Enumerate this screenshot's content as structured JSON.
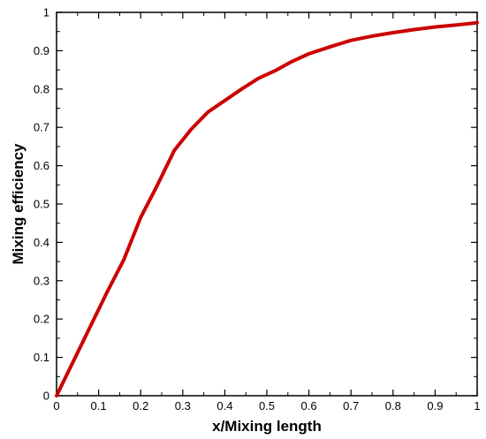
{
  "chart_data": {
    "type": "line",
    "title": "",
    "xlabel": "x/Mixing length",
    "ylabel": "Mixing efficiency",
    "xlim": [
      0,
      1
    ],
    "ylim": [
      0,
      1
    ],
    "xticks": [
      0,
      0.1,
      0.2,
      0.3,
      0.4,
      0.5,
      0.6,
      0.7,
      0.8,
      0.9,
      1
    ],
    "yticks": [
      0,
      0.1,
      0.2,
      0.3,
      0.4,
      0.5,
      0.6,
      0.7,
      0.8,
      0.9,
      1
    ],
    "xtick_labels": [
      "0",
      "0.1",
      "0.2",
      "0.3",
      "0.4",
      "0.5",
      "0.6",
      "0.7",
      "0.8",
      "0.9",
      "1"
    ],
    "ytick_labels": [
      "0",
      "0.1",
      "0.2",
      "0.3",
      "0.4",
      "0.5",
      "0.6",
      "0.7",
      "0.8",
      "0.9",
      "1"
    ],
    "grid": false,
    "legend": "none",
    "series": [
      {
        "color": "#cc0000",
        "x": [
          0,
          0.04,
          0.08,
          0.12,
          0.16,
          0.2,
          0.24,
          0.28,
          0.32,
          0.36,
          0.4,
          0.44,
          0.48,
          0.52,
          0.56,
          0.6,
          0.65,
          0.7,
          0.75,
          0.8,
          0.85,
          0.9,
          0.95,
          1.0
        ],
        "y": [
          0,
          0.09,
          0.18,
          0.27,
          0.355,
          0.465,
          0.55,
          0.64,
          0.695,
          0.74,
          0.77,
          0.8,
          0.828,
          0.848,
          0.872,
          0.892,
          0.91,
          0.927,
          0.938,
          0.947,
          0.955,
          0.962,
          0.967,
          0.973
        ]
      }
    ]
  }
}
